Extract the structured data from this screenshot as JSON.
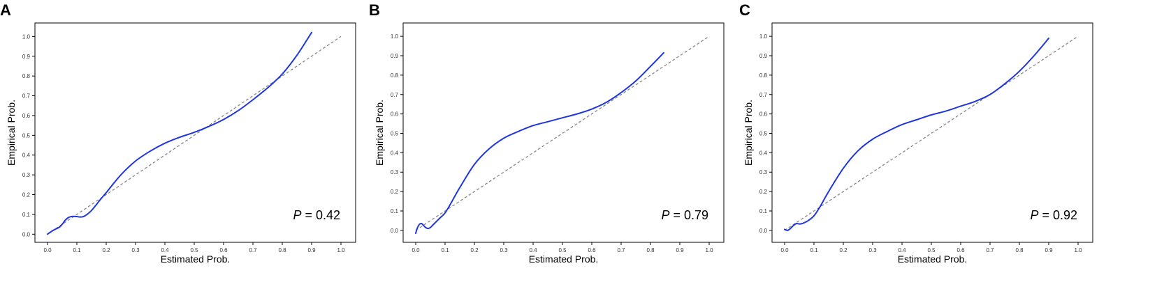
{
  "chart_data": [
    {
      "type": "line",
      "panel_label": "A",
      "xlabel": "Estimated Prob.",
      "ylabel": "Empirical Prob.",
      "xlim": [
        0.0,
        1.0
      ],
      "ylim": [
        -0.02,
        1.04
      ],
      "xticks": [
        "0.0",
        "0.1",
        "0.2",
        "0.3",
        "0.4",
        "0.5",
        "0.6",
        "0.7",
        "0.8",
        "0.9",
        "1.0"
      ],
      "yticks": [
        "0.0",
        "0.1",
        "0.2",
        "0.3",
        "0.4",
        "0.5",
        "0.6",
        "0.7",
        "0.8",
        "0.9",
        "1.0"
      ],
      "grid": false,
      "annotation": {
        "var": "P",
        "text": " = 0.42"
      },
      "reference_line": {
        "style": "dashed",
        "color": "#888888",
        "from": [
          0.0,
          0.0
        ],
        "to": [
          1.0,
          1.0
        ]
      },
      "series": [
        {
          "color": "#1f35e0",
          "x": [
            0.0,
            0.02,
            0.04,
            0.05,
            0.06,
            0.07,
            0.08,
            0.09,
            0.1,
            0.11,
            0.12,
            0.13,
            0.15,
            0.18,
            0.2,
            0.25,
            0.3,
            0.35,
            0.4,
            0.45,
            0.5,
            0.55,
            0.6,
            0.65,
            0.7,
            0.75,
            0.8,
            0.85,
            0.9
          ],
          "y": [
            0.0,
            0.02,
            0.035,
            0.05,
            0.07,
            0.083,
            0.089,
            0.09,
            0.089,
            0.087,
            0.088,
            0.095,
            0.12,
            0.175,
            0.21,
            0.3,
            0.37,
            0.42,
            0.46,
            0.49,
            0.515,
            0.545,
            0.58,
            0.625,
            0.68,
            0.74,
            0.81,
            0.905,
            1.02
          ]
        }
      ]
    },
    {
      "type": "line",
      "panel_label": "B",
      "xlabel": "Estimated Prob.",
      "ylabel": "Empirical Prob.",
      "xlim": [
        0.0,
        1.0
      ],
      "ylim": [
        -0.04,
        1.04
      ],
      "xticks": [
        "0.0",
        "0.1",
        "0.2",
        "0.3",
        "0.4",
        "0.5",
        "0.6",
        "0.7",
        "0.8",
        "0.9",
        "1.0"
      ],
      "yticks": [
        "0.0",
        "0.1",
        "0.2",
        "0.3",
        "0.4",
        "0.5",
        "0.6",
        "0.7",
        "0.8",
        "0.9",
        "1.0"
      ],
      "grid": false,
      "annotation": {
        "var": "P",
        "text": " = 0.79"
      },
      "reference_line": {
        "style": "dashed",
        "color": "#888888",
        "from": [
          0.0,
          0.0
        ],
        "to": [
          1.0,
          1.0
        ]
      },
      "series": [
        {
          "color": "#1f35e0",
          "x": [
            0.0,
            0.005,
            0.012,
            0.02,
            0.03,
            0.04,
            0.05,
            0.06,
            0.08,
            0.1,
            0.12,
            0.15,
            0.2,
            0.25,
            0.3,
            0.35,
            0.4,
            0.45,
            0.5,
            0.55,
            0.6,
            0.65,
            0.7,
            0.75,
            0.8,
            0.845
          ],
          "y": [
            -0.015,
            0.01,
            0.03,
            0.035,
            0.02,
            0.01,
            0.015,
            0.03,
            0.06,
            0.09,
            0.14,
            0.22,
            0.34,
            0.42,
            0.475,
            0.51,
            0.54,
            0.56,
            0.58,
            0.6,
            0.625,
            0.66,
            0.71,
            0.77,
            0.845,
            0.915
          ]
        }
      ]
    },
    {
      "type": "line",
      "panel_label": "C",
      "xlabel": "Estimated Prob.",
      "ylabel": "Empirical Prob.",
      "xlim": [
        0.0,
        1.0
      ],
      "ylim": [
        -0.04,
        1.04
      ],
      "xticks": [
        "0.0",
        "0.1",
        "0.2",
        "0.3",
        "0.4",
        "0.5",
        "0.6",
        "0.7",
        "0.8",
        "0.9",
        "1.0"
      ],
      "yticks": [
        "0.0",
        "0.1",
        "0.2",
        "0.3",
        "0.4",
        "0.5",
        "0.6",
        "0.7",
        "0.8",
        "0.9",
        "1.0"
      ],
      "grid": false,
      "annotation": {
        "var": "P",
        "text": " = 0.92"
      },
      "reference_line": {
        "style": "dashed",
        "color": "#888888",
        "from": [
          0.0,
          0.0
        ],
        "to": [
          1.0,
          1.0
        ]
      },
      "series": [
        {
          "color": "#1f35e0",
          "x": [
            0.0,
            0.01,
            0.02,
            0.03,
            0.04,
            0.05,
            0.06,
            0.08,
            0.1,
            0.12,
            0.15,
            0.2,
            0.25,
            0.3,
            0.35,
            0.4,
            0.45,
            0.5,
            0.55,
            0.6,
            0.65,
            0.7,
            0.75,
            0.8,
            0.85,
            0.9
          ],
          "y": [
            0.005,
            0.0,
            0.01,
            0.025,
            0.035,
            0.033,
            0.035,
            0.05,
            0.075,
            0.12,
            0.2,
            0.32,
            0.41,
            0.47,
            0.51,
            0.545,
            0.57,
            0.595,
            0.615,
            0.64,
            0.665,
            0.7,
            0.755,
            0.82,
            0.9,
            0.99
          ]
        }
      ]
    }
  ]
}
